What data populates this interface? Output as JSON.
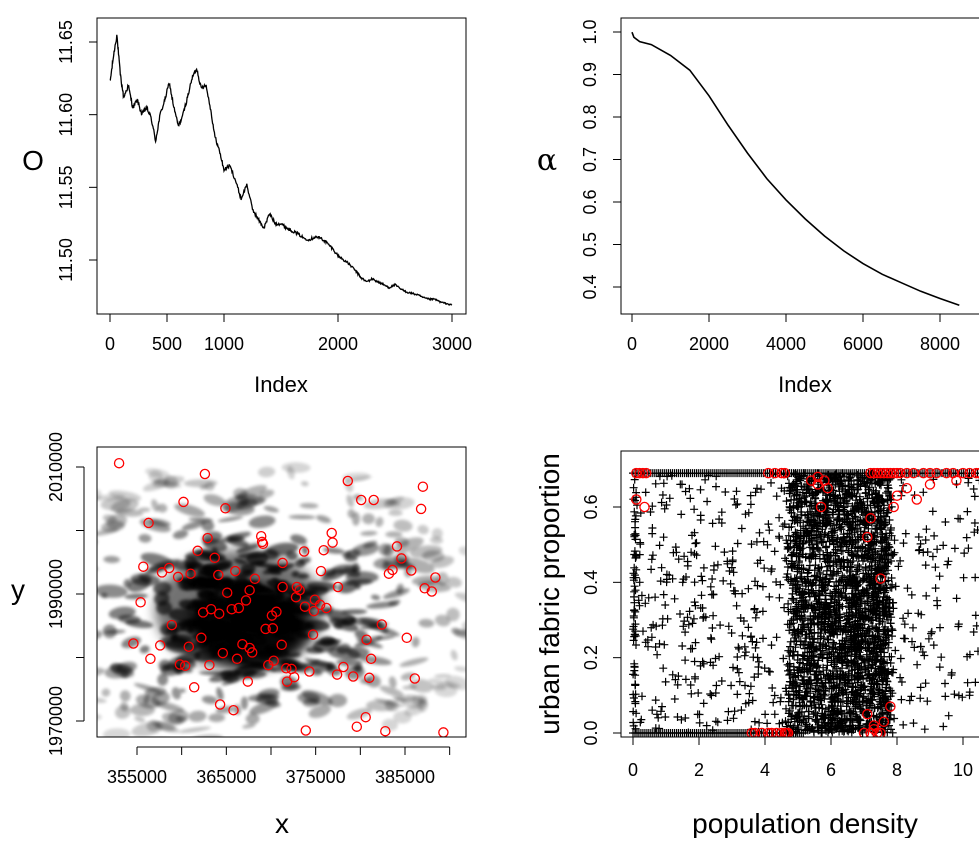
{
  "chart_data": [
    {
      "type": "line",
      "xlabel": "Index",
      "ylabel": "O",
      "xlim": [
        0,
        3000
      ],
      "ylim": [
        11.47,
        11.655
      ],
      "x_ticks": [
        "0",
        "500",
        "1000",
        "2000",
        "3000"
      ],
      "y_ticks": [
        "11.50",
        "11.55",
        "11.60",
        "11.65"
      ],
      "series": [
        {
          "x": [
            0,
            30,
            60,
            90,
            120,
            160,
            200,
            240,
            280,
            320,
            360,
            400,
            440,
            480,
            520,
            560,
            600,
            640,
            680,
            720,
            760,
            800,
            840,
            880,
            920,
            960,
            1000,
            1050,
            1100,
            1150,
            1200,
            1250,
            1300,
            1350,
            1400,
            1450,
            1500,
            1550,
            1600,
            1650,
            1700,
            1750,
            1800,
            1850,
            1900,
            1950,
            2000,
            2050,
            2100,
            2150,
            2200,
            2250,
            2300,
            2350,
            2400,
            2450,
            2500,
            2550,
            2600,
            2650,
            2700,
            2750,
            2800,
            2850,
            2900,
            2950,
            3000
          ],
          "y": [
            11.622,
            11.64,
            11.655,
            11.628,
            11.612,
            11.62,
            11.605,
            11.61,
            11.6,
            11.605,
            11.598,
            11.582,
            11.6,
            11.61,
            11.622,
            11.605,
            11.592,
            11.6,
            11.612,
            11.625,
            11.632,
            11.618,
            11.621,
            11.605,
            11.585,
            11.575,
            11.562,
            11.565,
            11.555,
            11.542,
            11.552,
            11.535,
            11.528,
            11.522,
            11.532,
            11.525,
            11.525,
            11.522,
            11.52,
            11.518,
            11.515,
            11.514,
            11.516,
            11.515,
            11.512,
            11.508,
            11.503,
            11.5,
            11.497,
            11.493,
            11.488,
            11.485,
            11.487,
            11.485,
            11.483,
            11.481,
            11.483,
            11.48,
            11.478,
            11.477,
            11.476,
            11.474,
            11.473,
            11.473,
            11.471,
            11.47,
            11.469
          ]
        }
      ]
    },
    {
      "type": "line",
      "xlabel": "Index",
      "ylabel": "α",
      "xlim": [
        0,
        8500
      ],
      "ylim": [
        0.35,
        1.0
      ],
      "x_ticks": [
        "0",
        "2000",
        "4000",
        "6000",
        "8000"
      ],
      "y_ticks": [
        "0.4",
        "0.5",
        "0.6",
        "0.7",
        "0.8",
        "0.9",
        "1.0"
      ],
      "series": [
        {
          "x": [
            0,
            50,
            200,
            500,
            1000,
            1500,
            2000,
            2500,
            3000,
            3500,
            4000,
            4500,
            5000,
            5500,
            6000,
            6500,
            7000,
            7500,
            8000,
            8500
          ],
          "y": [
            1.0,
            0.985,
            0.978,
            0.97,
            0.945,
            0.91,
            0.85,
            0.78,
            0.715,
            0.655,
            0.605,
            0.56,
            0.52,
            0.485,
            0.455,
            0.43,
            0.41,
            0.39,
            0.373,
            0.357
          ]
        }
      ]
    },
    {
      "type": "scatter",
      "xlabel": "x",
      "ylabel": "y",
      "xlim": [
        352000,
        391000
      ],
      "ylim": [
        1968000,
        2011000
      ],
      "x_ticks": [
        "355000",
        "365000",
        "375000",
        "385000"
      ],
      "y_ticks": [
        "1970000",
        "1990000",
        "2010000"
      ],
      "background": "raster density map (black urban patches on white)",
      "point_color": "#ff0000",
      "series": [
        {
          "x": [
            353000,
            354600,
            355700,
            356300,
            357800,
            358900,
            359600,
            360400,
            361400,
            362200,
            363300,
            364200,
            365100,
            366400,
            367600,
            368900,
            370100,
            371200,
            372300,
            373900,
            374800,
            375600,
            376900,
            378600,
            380100,
            381500,
            382800,
            384600,
            386100,
            387200,
            388400,
            389300,
            360200,
            361000,
            362600,
            363700,
            364900,
            366000,
            367200,
            368200,
            369400,
            370600,
            371700,
            372900,
            373800,
            374700,
            375500,
            376800,
            378100,
            380700,
            381200,
            383600,
            385200,
            386800,
            388000,
            358600,
            359800,
            361800,
            363100,
            364300,
            365600,
            366800,
            367900,
            369100,
            370200,
            371300,
            372600,
            373700,
            374900,
            376200,
            377500,
            379600,
            381000,
            382400,
            384100,
            385700,
            387000,
            362900,
            364600,
            366200,
            367600,
            369000,
            370300,
            371800,
            372800,
            374300,
            375900,
            377400,
            379200,
            380600,
            383200,
            355400,
            356500,
            357600,
            360800,
            362400,
            364100,
            365800,
            367400,
            369700,
            371300,
            373200
          ],
          "y": [
            2010600,
            1982200,
            1994300,
            2001200,
            1993400,
            1985100,
            1992700,
            1978700,
            1975300,
            1983100,
            1987600,
            1986900,
            1990200,
            1987800,
            1981500,
            1999100,
            1986600,
            1982000,
            1978200,
            1968500,
            1987300,
            1993600,
            1998100,
            2007800,
            2004800,
            2004800,
            1968400,
            1995600,
            1976700,
            1990900,
            1992600,
            1968200,
            2004500,
            1993200,
            2008900,
            1995700,
            2003500,
            1993600,
            1989000,
            1992400,
            1984500,
            1987200,
            1978300,
            1991100,
            1988000,
            1983600,
            1988300,
            1999600,
            1978500,
            1982800,
            1979800,
            1993800,
            1983100,
            2003400,
            1990400,
            1994100,
            1978900,
            1996800,
            1978800,
            1972600,
            1987600,
            1982100,
            1980800,
            1997900,
            1984600,
            1994900,
            1976900,
            1996700,
            1989100,
            1987800,
            1991100,
            1969100,
            1976800,
            1985200,
            1997500,
            1993700,
            2006900,
            1998800,
            1980700,
            1979800,
            1990600,
            1998200,
            1979500,
            1976200,
            1989500,
            1977800,
            1996900,
            1977300,
            1977000,
            1970600,
            1993200,
            1988700,
            1979800,
            1981900,
            1981700,
            1987100,
            1993000,
            1971700,
            1976200,
            1978800,
            1991100,
            1990600
          ]
        }
      ]
    },
    {
      "type": "scatter",
      "xlabel": "population density",
      "ylabel": "urban fabric proportion",
      "xlim": [
        0,
        10.6
      ],
      "ylim": [
        0,
        0.69
      ],
      "x_ticks": [
        "0",
        "2",
        "4",
        "6",
        "8",
        "10"
      ],
      "y_ticks": [
        "0.0",
        "0.2",
        "0.4",
        "0.6"
      ],
      "series": [
        {
          "marker": "+",
          "color": "#000000"
        },
        {
          "marker": "o",
          "color": "#ff0000",
          "x": [
            0.1,
            0.2,
            0.3,
            0.1,
            0.35,
            0.4,
            3.6,
            3.7,
            3.9,
            4.1,
            4.2,
            4.35,
            4.5,
            4.6,
            4.65,
            4.7,
            4.1,
            4.3,
            4.5,
            4.6,
            5.6,
            5.8,
            5.4,
            5.6,
            5.7,
            5.9,
            7.2,
            7.4,
            7.3,
            7.5,
            7.6,
            7.7,
            7.8,
            7.9,
            8.0,
            8.1,
            8.3,
            8.5,
            8.8,
            9.0,
            9.2,
            9.5,
            9.7,
            10.0,
            10.2,
            10.4,
            10.5,
            7.2,
            7.1,
            7.5,
            7.9,
            8.0,
            8.3,
            8.6,
            9.0,
            9.8,
            7.1,
            7.3,
            7.6,
            7.8,
            7.2,
            7.4,
            7.5,
            7.0,
            7.3
          ],
          "y": [
            0.69,
            0.69,
            0.69,
            0.62,
            0.6,
            0.69,
            0.0,
            0.0,
            0.0,
            0.0,
            0.0,
            0.0,
            0.0,
            0.0,
            0.0,
            0.0,
            0.69,
            0.69,
            0.69,
            0.69,
            0.68,
            0.67,
            0.67,
            0.66,
            0.6,
            0.65,
            0.69,
            0.69,
            0.69,
            0.69,
            0.69,
            0.69,
            0.69,
            0.69,
            0.69,
            0.69,
            0.69,
            0.69,
            0.69,
            0.69,
            0.69,
            0.69,
            0.69,
            0.69,
            0.69,
            0.69,
            0.69,
            0.57,
            0.52,
            0.41,
            0.6,
            0.63,
            0.65,
            0.62,
            0.66,
            0.67,
            0.05,
            0.02,
            0.03,
            0.07,
            0.0,
            0.0,
            0.0,
            0.0,
            0.01
          ]
        }
      ]
    }
  ]
}
